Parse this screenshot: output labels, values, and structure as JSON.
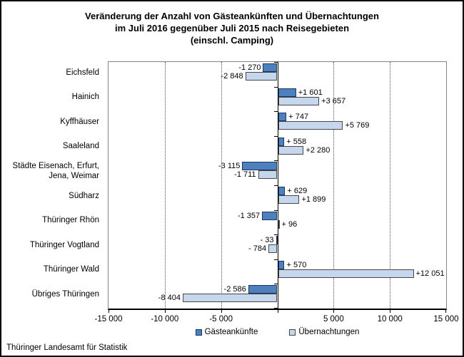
{
  "title": {
    "lines": [
      "Veränderung der Anzahl von Gästeankünften und Übernachtungen",
      "im Juli 2016 gegenüber Juli 2015 nach Reisegebieten",
      "(einschl. Camping)"
    ]
  },
  "footer": "Thüringer Landesamt für Statistik",
  "chart_data": {
    "type": "bar",
    "orientation": "horizontal",
    "title": "Veränderung der Anzahl von Gästeankünften und Übernachtungen im Juli 2016 gegenüber Juli 2015 nach Reisegebieten (einschl. Camping)",
    "categories": [
      "Eichsfeld",
      "Hainich",
      "Kyffhäuser",
      "Saaleland",
      "Städte Eisenach, Erfurt,\nJena, Weimar",
      "Südharz",
      "Thüringer Rhön",
      "Thüringer Vogtland",
      "Thüringer Wald",
      "Übriges Thüringen"
    ],
    "series": [
      {
        "name": "Gästeankünfte",
        "fill": "#4d80bd",
        "border": "#17375d",
        "values": [
          -1270,
          1601,
          747,
          558,
          -3115,
          629,
          -1357,
          -33,
          570,
          -2586
        ],
        "labels": [
          "-1 270",
          "+1 601",
          "+ 747",
          "+ 558",
          "-3 115",
          "+ 629",
          "-1 357",
          "- 33",
          "+ 570",
          "-2 586"
        ]
      },
      {
        "name": "Übernachtungen",
        "fill": "#c6d6ec",
        "border": "#474747",
        "values": [
          -2848,
          3657,
          5769,
          2280,
          -1711,
          1899,
          96,
          -784,
          12051,
          -8404
        ],
        "labels": [
          "-2 848",
          "+3 657",
          "+5 769",
          "+2 280",
          "-1 711",
          "+1 899",
          "+ 96",
          "- 784",
          "+12 051",
          "-8 404"
        ]
      }
    ],
    "xlim": [
      -15000,
      15000
    ],
    "x_ticks": [
      -15000,
      -10000,
      -5000,
      0,
      5000,
      10000,
      15000
    ],
    "x_tick_labels": [
      "-15 000",
      "-10 000",
      "-5 000",
      "",
      "5 000",
      "10 000",
      "15 000"
    ],
    "gridline_values": [
      -10000,
      -5000,
      5000,
      10000
    ],
    "grid": "dotted-vertical",
    "legend_position": "bottom"
  }
}
